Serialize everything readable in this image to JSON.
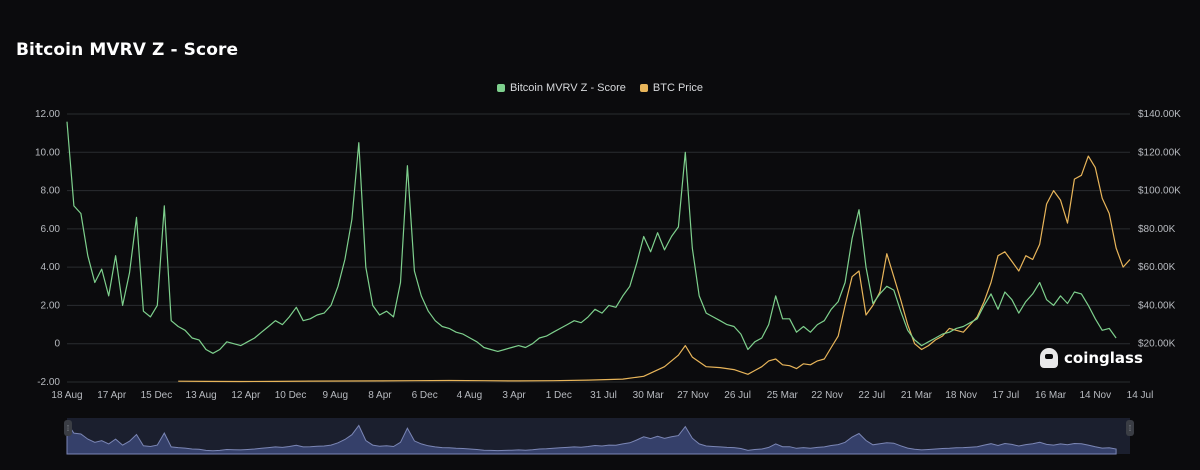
{
  "title": "Bitcoin MVRV Z - Score",
  "watermark": "coinglass",
  "colors": {
    "z": "#7ed08d",
    "price": "#e8b55a",
    "grid": "#2a2c30",
    "navigator": "#35406a",
    "navigator_line": "#7b86b5"
  },
  "chart_data": {
    "type": "line",
    "title": "Bitcoin MVRV Z - Score",
    "x_tick_labels": [
      "18 Aug",
      "17 Apr",
      "15 Dec",
      "13 Aug",
      "12 Apr",
      "10 Dec",
      "9 Aug",
      "8 Apr",
      "6 Dec",
      "4 Aug",
      "3 Apr",
      "1 Dec",
      "31 Jul",
      "30 Mar",
      "27 Nov",
      "26 Jul",
      "25 Mar",
      "22 Nov",
      "22 Jul",
      "21 Mar",
      "18 Nov",
      "17 Jul",
      "16 Mar",
      "14 Nov",
      "14 Jul"
    ],
    "y_left": {
      "min": -2,
      "max": 12,
      "ticks": [
        "-2.00",
        "0",
        "2.00",
        "4.00",
        "6.00",
        "8.00",
        "10.00",
        "12.00"
      ]
    },
    "y_right": {
      "min": 0,
      "max": 140000,
      "ticks": [
        "$20.00K",
        "$40.00K",
        "$60.00K",
        "$80.00K",
        "$100.00K",
        "$120.00K",
        "$140.00K"
      ]
    },
    "grid": true,
    "legend_position": "top-center",
    "series": [
      {
        "name": "Bitcoin MVRV Z - Score",
        "axis": "left",
        "points": [
          [
            0,
            11.6
          ],
          [
            1,
            7.2
          ],
          [
            2,
            6.8
          ],
          [
            3,
            4.6
          ],
          [
            4,
            3.2
          ],
          [
            5,
            3.9
          ],
          [
            6,
            2.5
          ],
          [
            7,
            4.6
          ],
          [
            8,
            2.0
          ],
          [
            9,
            3.7
          ],
          [
            10,
            6.6
          ],
          [
            11,
            1.7
          ],
          [
            12,
            1.4
          ],
          [
            13,
            2.0
          ],
          [
            14,
            7.2
          ],
          [
            15,
            1.2
          ],
          [
            16,
            0.9
          ],
          [
            17,
            0.7
          ],
          [
            18,
            0.3
          ],
          [
            19,
            0.2
          ],
          [
            20,
            -0.3
          ],
          [
            21,
            -0.5
          ],
          [
            22,
            -0.3
          ],
          [
            23,
            0.1
          ],
          [
            24,
            0.0
          ],
          [
            25,
            -0.1
          ],
          [
            26,
            0.1
          ],
          [
            27,
            0.3
          ],
          [
            28,
            0.6
          ],
          [
            29,
            0.9
          ],
          [
            30,
            1.2
          ],
          [
            31,
            1.0
          ],
          [
            32,
            1.4
          ],
          [
            33,
            1.9
          ],
          [
            34,
            1.2
          ],
          [
            35,
            1.3
          ],
          [
            36,
            1.5
          ],
          [
            37,
            1.6
          ],
          [
            38,
            2.0
          ],
          [
            39,
            3.0
          ],
          [
            40,
            4.4
          ],
          [
            41,
            6.5
          ],
          [
            42,
            10.5
          ],
          [
            43,
            4.0
          ],
          [
            44,
            2.0
          ],
          [
            45,
            1.5
          ],
          [
            46,
            1.7
          ],
          [
            47,
            1.4
          ],
          [
            48,
            3.2
          ],
          [
            49,
            9.3
          ],
          [
            50,
            3.8
          ],
          [
            51,
            2.5
          ],
          [
            52,
            1.7
          ],
          [
            53,
            1.2
          ],
          [
            54,
            0.9
          ],
          [
            55,
            0.8
          ],
          [
            56,
            0.6
          ],
          [
            57,
            0.5
          ],
          [
            58,
            0.3
          ],
          [
            59,
            0.1
          ],
          [
            60,
            -0.2
          ],
          [
            61,
            -0.3
          ],
          [
            62,
            -0.4
          ],
          [
            63,
            -0.3
          ],
          [
            64,
            -0.2
          ],
          [
            65,
            -0.1
          ],
          [
            66,
            -0.2
          ],
          [
            67,
            0.0
          ],
          [
            68,
            0.3
          ],
          [
            69,
            0.4
          ],
          [
            70,
            0.6
          ],
          [
            71,
            0.8
          ],
          [
            72,
            1.0
          ],
          [
            73,
            1.2
          ],
          [
            74,
            1.1
          ],
          [
            75,
            1.4
          ],
          [
            76,
            1.8
          ],
          [
            77,
            1.6
          ],
          [
            78,
            2.0
          ],
          [
            79,
            1.9
          ],
          [
            80,
            2.5
          ],
          [
            81,
            3.0
          ],
          [
            82,
            4.2
          ],
          [
            83,
            5.6
          ],
          [
            84,
            4.8
          ],
          [
            85,
            5.8
          ],
          [
            86,
            4.9
          ],
          [
            87,
            5.6
          ],
          [
            88,
            6.1
          ],
          [
            89,
            10.0
          ],
          [
            90,
            5.0
          ],
          [
            91,
            2.5
          ],
          [
            92,
            1.6
          ],
          [
            93,
            1.4
          ],
          [
            94,
            1.2
          ],
          [
            95,
            1.0
          ],
          [
            96,
            0.9
          ],
          [
            97,
            0.5
          ],
          [
            98,
            -0.3
          ],
          [
            99,
            0.1
          ],
          [
            100,
            0.3
          ],
          [
            101,
            1.0
          ],
          [
            102,
            2.5
          ],
          [
            103,
            1.3
          ],
          [
            104,
            1.3
          ],
          [
            105,
            0.6
          ],
          [
            106,
            0.9
          ],
          [
            107,
            0.6
          ],
          [
            108,
            1.0
          ],
          [
            109,
            1.2
          ],
          [
            110,
            1.8
          ],
          [
            111,
            2.2
          ],
          [
            112,
            3.2
          ],
          [
            113,
            5.5
          ],
          [
            114,
            7.0
          ],
          [
            115,
            4.0
          ],
          [
            116,
            2.1
          ],
          [
            117,
            2.6
          ],
          [
            118,
            3.0
          ],
          [
            119,
            2.8
          ],
          [
            120,
            1.7
          ],
          [
            121,
            0.7
          ],
          [
            122,
            0.2
          ],
          [
            123,
            -0.1
          ],
          [
            124,
            0.1
          ],
          [
            125,
            0.3
          ],
          [
            126,
            0.5
          ],
          [
            127,
            0.6
          ],
          [
            128,
            0.8
          ],
          [
            129,
            0.9
          ],
          [
            130,
            1.1
          ],
          [
            131,
            1.3
          ],
          [
            132,
            2.0
          ],
          [
            133,
            2.6
          ],
          [
            134,
            1.8
          ],
          [
            135,
            2.7
          ],
          [
            136,
            2.3
          ],
          [
            137,
            1.6
          ],
          [
            138,
            2.2
          ],
          [
            139,
            2.6
          ],
          [
            140,
            3.2
          ],
          [
            141,
            2.3
          ],
          [
            142,
            2.0
          ],
          [
            143,
            2.5
          ],
          [
            144,
            2.1
          ],
          [
            145,
            2.7
          ],
          [
            146,
            2.6
          ],
          [
            147,
            2.0
          ],
          [
            148,
            1.3
          ],
          [
            149,
            0.7
          ],
          [
            150,
            0.8
          ],
          [
            151,
            0.3
          ]
        ]
      },
      {
        "name": "BTC Price",
        "axis": "right",
        "points": [
          [
            16,
            400
          ],
          [
            20,
            300
          ],
          [
            25,
            250
          ],
          [
            30,
            300
          ],
          [
            35,
            450
          ],
          [
            40,
            500
          ],
          [
            45,
            600
          ],
          [
            50,
            700
          ],
          [
            55,
            800
          ],
          [
            60,
            700
          ],
          [
            65,
            600
          ],
          [
            70,
            700
          ],
          [
            75,
            1000
          ],
          [
            80,
            1500
          ],
          [
            83,
            3000
          ],
          [
            86,
            8000
          ],
          [
            88,
            14000
          ],
          [
            89,
            19000
          ],
          [
            90,
            13000
          ],
          [
            92,
            8000
          ],
          [
            94,
            7500
          ],
          [
            96,
            6500
          ],
          [
            98,
            4000
          ],
          [
            99,
            6000
          ],
          [
            100,
            8000
          ],
          [
            101,
            11000
          ],
          [
            102,
            12000
          ],
          [
            103,
            9000
          ],
          [
            104,
            8500
          ],
          [
            105,
            7000
          ],
          [
            106,
            9500
          ],
          [
            107,
            9000
          ],
          [
            108,
            11000
          ],
          [
            109,
            12000
          ],
          [
            110,
            18000
          ],
          [
            111,
            24000
          ],
          [
            112,
            40000
          ],
          [
            113,
            55000
          ],
          [
            114,
            58000
          ],
          [
            115,
            35000
          ],
          [
            116,
            40000
          ],
          [
            117,
            47000
          ],
          [
            118,
            67000
          ],
          [
            119,
            55000
          ],
          [
            120,
            43000
          ],
          [
            121,
            30000
          ],
          [
            122,
            20000
          ],
          [
            123,
            17000
          ],
          [
            124,
            19000
          ],
          [
            125,
            22000
          ],
          [
            126,
            24000
          ],
          [
            127,
            28000
          ],
          [
            128,
            27000
          ],
          [
            129,
            26000
          ],
          [
            130,
            30000
          ],
          [
            131,
            34000
          ],
          [
            132,
            42000
          ],
          [
            133,
            52000
          ],
          [
            134,
            66000
          ],
          [
            135,
            68000
          ],
          [
            136,
            63000
          ],
          [
            137,
            58000
          ],
          [
            138,
            66000
          ],
          [
            139,
            64000
          ],
          [
            140,
            72000
          ],
          [
            141,
            93000
          ],
          [
            142,
            100000
          ],
          [
            143,
            95000
          ],
          [
            144,
            83000
          ],
          [
            145,
            106000
          ],
          [
            146,
            108000
          ],
          [
            147,
            118000
          ],
          [
            148,
            112000
          ],
          [
            149,
            96000
          ],
          [
            150,
            88000
          ],
          [
            151,
            70000
          ],
          [
            152,
            60000
          ],
          [
            153,
            64000
          ]
        ]
      }
    ]
  }
}
